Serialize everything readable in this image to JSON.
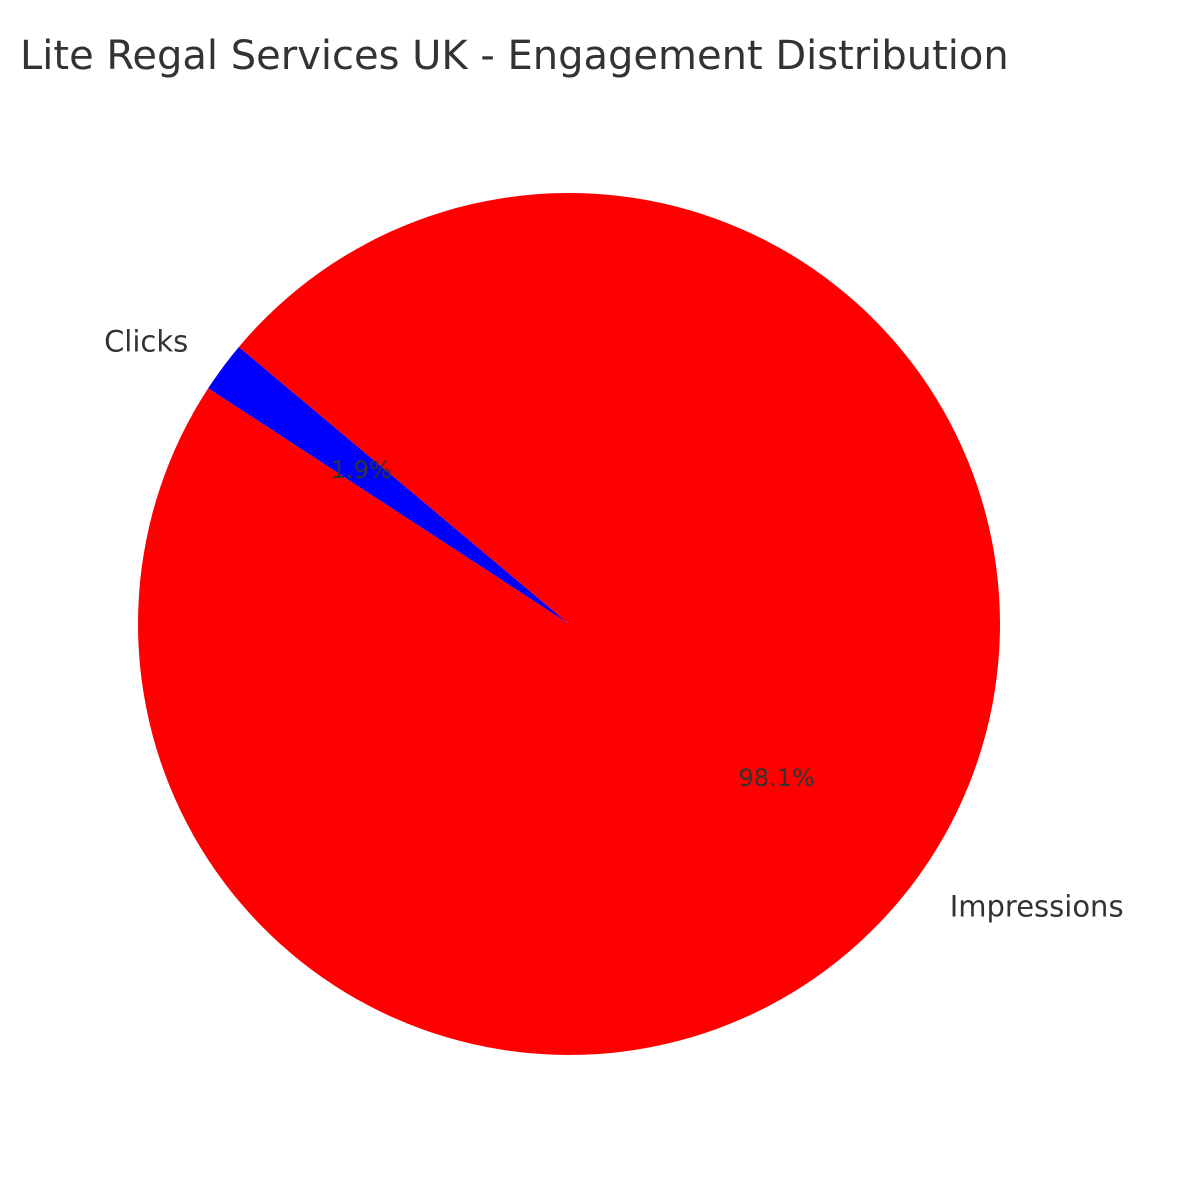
{
  "chart_data": {
    "type": "pie",
    "title": "Lite Regal Services UK - Engagement Distribution",
    "slices": [
      {
        "label": "Clicks",
        "value": 1.9,
        "percent_label": "1.9%",
        "color": "#0000ff"
      },
      {
        "label": "Impressions",
        "value": 98.1,
        "percent_label": "98.1%",
        "color": "#ff0000"
      }
    ],
    "start_angle_deg": 140,
    "direction": "counterclockwise"
  }
}
